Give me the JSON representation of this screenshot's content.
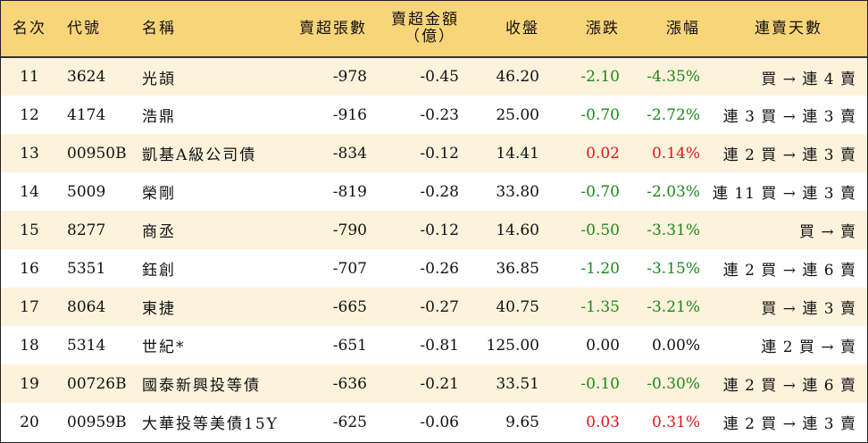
{
  "header": {
    "rank": "名次",
    "code": "代號",
    "name": "名稱",
    "net_sell_lots": "賣超張數",
    "net_sell_amount_line1": "賣超金額",
    "net_sell_amount_line2": "（億）",
    "close": "收盤",
    "change": "漲跌",
    "change_pct": "漲幅",
    "streak": "連賣天數"
  },
  "colors": {
    "header_bg": "#f9d57a",
    "odd_row_bg": "#fdf2dc",
    "up": "#e0161b",
    "down": "#1a8a1a"
  },
  "rows": [
    {
      "rank": "11",
      "code": "3624",
      "name": "光頡",
      "lots": "-978",
      "amount": "-0.45",
      "close": "46.20",
      "change": "-2.10",
      "pct": "-4.35%",
      "trend": "down",
      "streak": "買 → 連 4 賣"
    },
    {
      "rank": "12",
      "code": "4174",
      "name": "浩鼎",
      "lots": "-916",
      "amount": "-0.23",
      "close": "25.00",
      "change": "-0.70",
      "pct": "-2.72%",
      "trend": "down",
      "streak": "連 3 買 → 連 3 賣"
    },
    {
      "rank": "13",
      "code": "00950B",
      "name": "凱基A級公司債",
      "lots": "-834",
      "amount": "-0.12",
      "close": "14.41",
      "change": "0.02",
      "pct": "0.14%",
      "trend": "up",
      "streak": "連 2 買 → 連 3 賣"
    },
    {
      "rank": "14",
      "code": "5009",
      "name": "榮剛",
      "lots": "-819",
      "amount": "-0.28",
      "close": "33.80",
      "change": "-0.70",
      "pct": "-2.03%",
      "trend": "down",
      "streak": "連 11 買 → 連 3 賣"
    },
    {
      "rank": "15",
      "code": "8277",
      "name": "商丞",
      "lots": "-790",
      "amount": "-0.12",
      "close": "14.60",
      "change": "-0.50",
      "pct": "-3.31%",
      "trend": "down",
      "streak": "買 → 賣"
    },
    {
      "rank": "16",
      "code": "5351",
      "name": "鈺創",
      "lots": "-707",
      "amount": "-0.26",
      "close": "36.85",
      "change": "-1.20",
      "pct": "-3.15%",
      "trend": "down",
      "streak": "連 2 買 → 連 6 賣"
    },
    {
      "rank": "17",
      "code": "8064",
      "name": "東捷",
      "lots": "-665",
      "amount": "-0.27",
      "close": "40.75",
      "change": "-1.35",
      "pct": "-3.21%",
      "trend": "down",
      "streak": "買 → 連 3 賣"
    },
    {
      "rank": "18",
      "code": "5314",
      "name": "世紀*",
      "lots": "-651",
      "amount": "-0.81",
      "close": "125.00",
      "change": "0.00",
      "pct": "0.00%",
      "trend": "flat",
      "streak": "連 2 買 → 賣"
    },
    {
      "rank": "19",
      "code": "00726B",
      "name": "國泰新興投等債",
      "lots": "-636",
      "amount": "-0.21",
      "close": "33.51",
      "change": "-0.10",
      "pct": "-0.30%",
      "trend": "down",
      "streak": "連 2 買 → 連 6 賣"
    },
    {
      "rank": "20",
      "code": "00959B",
      "name": "大華投等美債15Y",
      "lots": "-625",
      "amount": "-0.06",
      "close": "9.65",
      "change": "0.03",
      "pct": "0.31%",
      "trend": "up",
      "streak": "連 2 買 → 連 3 賣"
    }
  ]
}
